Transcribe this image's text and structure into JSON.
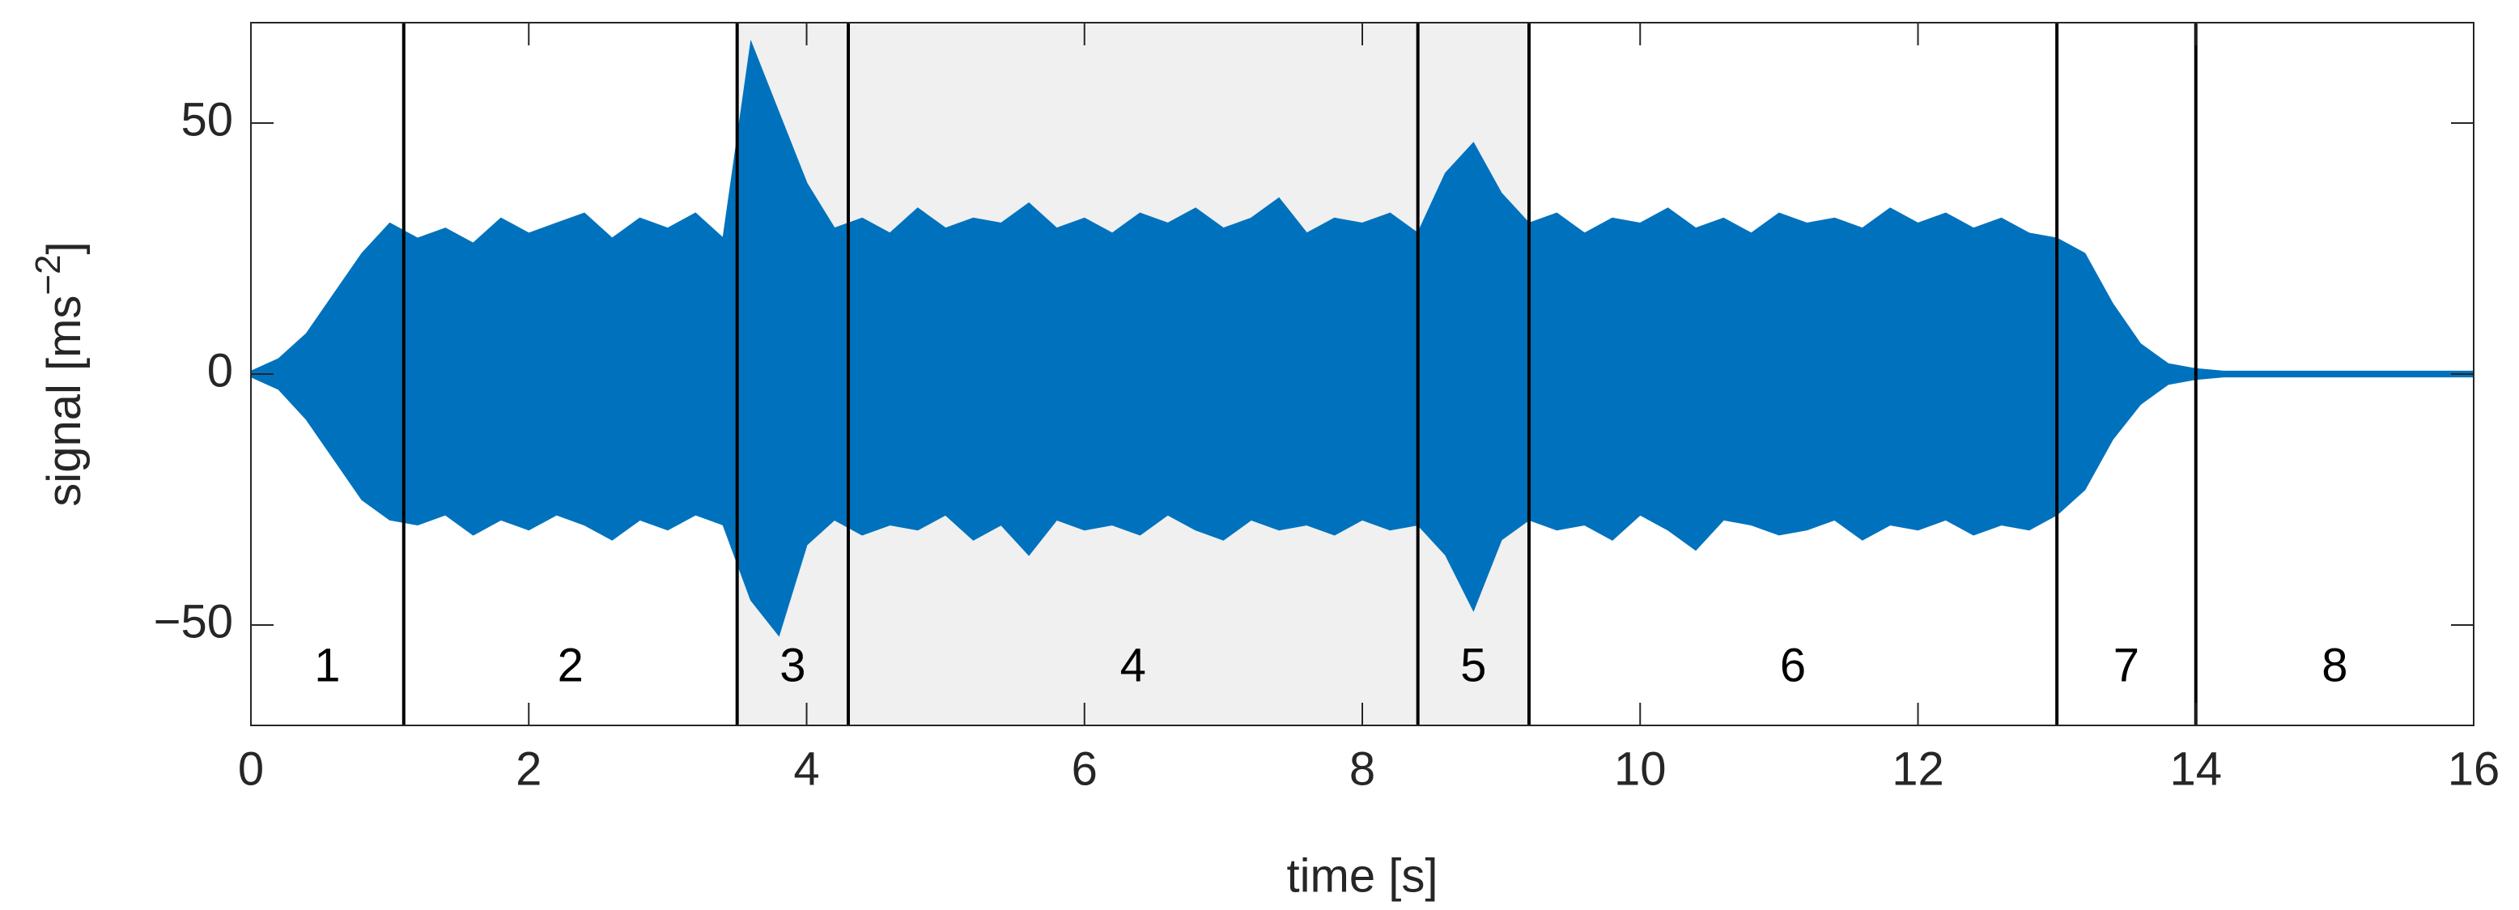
{
  "chart_data": {
    "type": "envelope",
    "xlabel": "time [s]",
    "ylabel": "signal [ms",
    "ylabel_sup": "−2",
    "ylabel_end": "]",
    "xlim": [
      0,
      16
    ],
    "xticks": [
      0,
      2,
      4,
      6,
      8,
      10,
      12,
      14,
      16
    ],
    "ylim": [
      -70,
      70
    ],
    "yticks": [
      {
        "value": -50,
        "label": "−50"
      },
      0,
      50
    ],
    "grid": false,
    "x": [
      0,
      0.2,
      0.4,
      0.6,
      0.8,
      1,
      1.2,
      1.4,
      1.6,
      1.8,
      2,
      2.2,
      2.4,
      2.6,
      2.8,
      3,
      3.2,
      3.4,
      3.6,
      3.8,
      4,
      4.2,
      4.4,
      4.6,
      4.8,
      5,
      5.2,
      5.4,
      5.6,
      5.8,
      6,
      6.2,
      6.4,
      6.6,
      6.8,
      7,
      7.2,
      7.4,
      7.6,
      7.8,
      8,
      8.2,
      8.4,
      8.6,
      8.8,
      9,
      9.2,
      9.4,
      9.6,
      9.8,
      10,
      10.2,
      10.4,
      10.6,
      10.8,
      11,
      11.2,
      11.4,
      11.6,
      11.8,
      12,
      12.2,
      12.4,
      12.6,
      12.8,
      13,
      13.2,
      13.4,
      13.6,
      13.8,
      14,
      14.2,
      14.4,
      14.6,
      14.8,
      15,
      15.2,
      15.4,
      15.6,
      15.8,
      16
    ],
    "series": [
      {
        "color": "#0072bd",
        "values": [
          0.5,
          3,
          8,
          16,
          24,
          30,
          27,
          29,
          26,
          31,
          28,
          30,
          32,
          27,
          31,
          29,
          32,
          27,
          66,
          52,
          38,
          29,
          31,
          28,
          33,
          29,
          31,
          30,
          34,
          29,
          31,
          28,
          32,
          30,
          33,
          29,
          31,
          35,
          28,
          31,
          30,
          32,
          28,
          40,
          46,
          36,
          30,
          32,
          28,
          31,
          30,
          33,
          29,
          31,
          28,
          32,
          30,
          31,
          29,
          33,
          30,
          32,
          29,
          31,
          28,
          27,
          24,
          14,
          6,
          2,
          1,
          0.5,
          0.5,
          0.5,
          0.5,
          0.5,
          0.5,
          0.5,
          0.5,
          0.5,
          0.5
        ]
      },
      {
        "color": "#0072bd",
        "values": [
          -0.5,
          -3,
          -9,
          -17,
          -25,
          -29,
          -30,
          -28,
          -32,
          -29,
          -31,
          -28,
          -30,
          -33,
          -29,
          -31,
          -28,
          -30,
          -45,
          -52,
          -34,
          -29,
          -32,
          -30,
          -31,
          -28,
          -33,
          -30,
          -36,
          -29,
          -31,
          -30,
          -32,
          -28,
          -31,
          -33,
          -29,
          -31,
          -30,
          -32,
          -29,
          -31,
          -30,
          -36,
          -47,
          -33,
          -29,
          -31,
          -30,
          -33,
          -28,
          -31,
          -35,
          -29,
          -30,
          -32,
          -31,
          -29,
          -33,
          -30,
          -31,
          -29,
          -32,
          -30,
          -31,
          -28,
          -23,
          -13,
          -6,
          -2,
          -1,
          -0.5,
          -0.5,
          -0.5,
          -0.5,
          -0.5,
          -0.5,
          -0.5,
          -0.5,
          -0.5,
          -0.5
        ]
      }
    ],
    "segments": [
      {
        "label": "1",
        "start": 0,
        "end": 1.1,
        "shaded": false
      },
      {
        "label": "2",
        "start": 1.1,
        "end": 3.5,
        "shaded": false
      },
      {
        "label": "3",
        "start": 3.5,
        "end": 4.3,
        "shaded": true
      },
      {
        "label": "4",
        "start": 4.3,
        "end": 8.4,
        "shaded": true
      },
      {
        "label": "5",
        "start": 8.4,
        "end": 9.2,
        "shaded": true
      },
      {
        "label": "6",
        "start": 9.2,
        "end": 13.0,
        "shaded": false
      },
      {
        "label": "7",
        "start": 13.0,
        "end": 14.0,
        "shaded": false
      },
      {
        "label": "8",
        "start": 14.0,
        "end": 16,
        "shaded": false
      }
    ]
  }
}
